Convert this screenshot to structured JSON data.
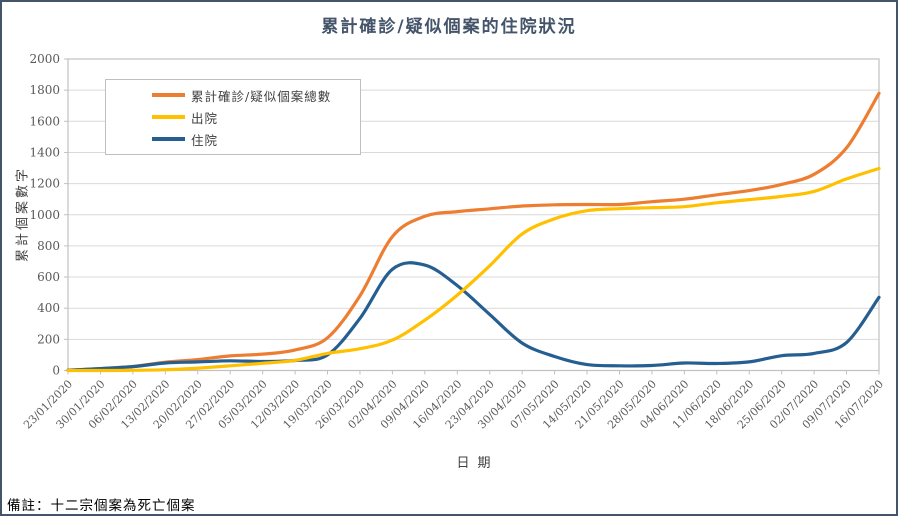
{
  "footnote": "備註：十二宗個案為死亡個案",
  "chart_data": {
    "type": "line",
    "title": "累計確診/疑似個案的住院狀況",
    "xlabel": "日期",
    "ylabel": "累計個案數字",
    "ylim": [
      0,
      2000
    ],
    "ytick_step": 200,
    "grid": "horizontal",
    "legend_position": "inside-top-left",
    "categories": [
      "23/01/2020",
      "30/01/2020",
      "06/02/2020",
      "13/02/2020",
      "20/02/2020",
      "27/02/2020",
      "05/03/2020",
      "12/03/2020",
      "19/03/2020",
      "26/03/2020",
      "02/04/2020",
      "09/04/2020",
      "16/04/2020",
      "23/04/2020",
      "30/04/2020",
      "07/05/2020",
      "14/05/2020",
      "21/05/2020",
      "28/05/2020",
      "04/06/2020",
      "11/06/2020",
      "18/06/2020",
      "25/06/2020",
      "02/07/2020",
      "09/07/2020",
      "16/07/2020"
    ],
    "series": [
      {
        "key": "total",
        "name": "累計確診/疑似個案總數",
        "color": "#ED7D31",
        "values": [
          2,
          12,
          26,
          53,
          70,
          94,
          105,
          132,
          210,
          480,
          860,
          990,
          1020,
          1038,
          1056,
          1064,
          1066,
          1066,
          1084,
          1100,
          1128,
          1155,
          1195,
          1260,
          1430,
          1780
        ]
      },
      {
        "key": "discharged",
        "name": "出院",
        "color": "#FFC000",
        "values": [
          0,
          0,
          1,
          5,
          15,
          30,
          46,
          65,
          110,
          140,
          195,
          323,
          484,
          672,
          877,
          974,
          1026,
          1039,
          1045,
          1052,
          1077,
          1097,
          1118,
          1150,
          1230,
          1297
        ]
      },
      {
        "key": "hospitalized",
        "name": "住院",
        "color": "#255E91",
        "values": [
          2,
          12,
          25,
          48,
          55,
          62,
          58,
          64,
          100,
          335,
          650,
          677,
          545,
          360,
          176,
          90,
          38,
          30,
          32,
          48,
          45,
          55,
          95,
          110,
          180,
          470
        ]
      }
    ],
    "style": {
      "frame_border": "#44546A",
      "grid_color": "#D9D9D9",
      "axis_color": "#C0C0C0",
      "tick_label_color": "#595959",
      "title_color": "#44546A",
      "text_color": "#404040"
    }
  }
}
